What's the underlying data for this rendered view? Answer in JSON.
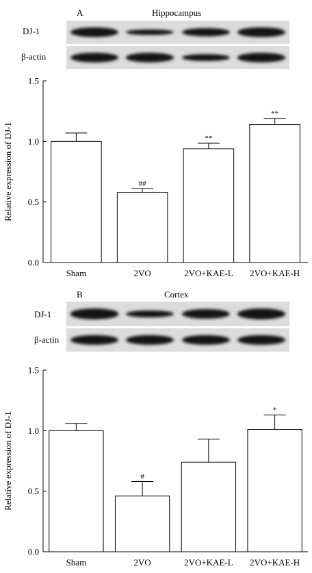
{
  "panels": {
    "A": {
      "letter": "A",
      "title": "Hippocampus",
      "blot_labels": [
        "DJ-1",
        "β-actin"
      ],
      "ylabel": "Relative expression of DJ-1",
      "yticks": [
        "0.0",
        "0.5",
        "1.0",
        "1.5"
      ]
    },
    "B": {
      "letter": "B",
      "title": "Cortex",
      "blot_labels": [
        "DJ-1",
        "β-actin"
      ],
      "ylabel": "Relative expression of DJ-1",
      "yticks": [
        "0.0",
        "0.5",
        "1.0",
        "1.5"
      ]
    }
  },
  "blot_bands": {
    "A": {
      "DJ-1": [
        1.0,
        0.62,
        0.88,
        1.05
      ],
      "β-actin": [
        1.0,
        0.95,
        0.75,
        0.95
      ]
    },
    "B": {
      "DJ-1": [
        1.0,
        0.72,
        0.95,
        1.05
      ],
      "β-actin": [
        1.0,
        1.0,
        1.0,
        1.0
      ]
    }
  },
  "chart_data": [
    {
      "type": "bar",
      "title": "Hippocampus",
      "categories": [
        "Sham",
        "2VO",
        "2VO+KAE-L",
        "2VO+KAE-H"
      ],
      "values": [
        1.0,
        0.58,
        0.94,
        1.14
      ],
      "errors": [
        0.07,
        0.03,
        0.045,
        0.05
      ],
      "annotations": [
        "",
        "##",
        "**",
        "**"
      ],
      "xlabel": "",
      "ylabel": "Relative expression of DJ-1",
      "ylim": [
        0,
        1.5
      ],
      "grid": false,
      "bar_color": "#ffffff",
      "edge_color": "#000000"
    },
    {
      "type": "bar",
      "title": "Cortex",
      "categories": [
        "Sham",
        "2VO",
        "2VO+KAE-L",
        "2VO+KAE-H"
      ],
      "values": [
        1.0,
        0.46,
        0.74,
        1.01
      ],
      "errors": [
        0.06,
        0.12,
        0.19,
        0.12
      ],
      "annotations": [
        "",
        "#",
        "",
        "*"
      ],
      "xlabel": "",
      "ylabel": "Relative expression of DJ-1",
      "ylim": [
        0,
        1.5
      ],
      "grid": false,
      "bar_color": "#ffffff",
      "edge_color": "#000000"
    }
  ]
}
